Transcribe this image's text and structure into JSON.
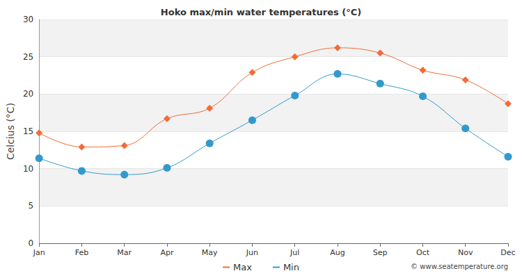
{
  "chart_data": {
    "type": "line",
    "title": "Hoko max/min water temperatures (°C)",
    "y_label": "Celcius (°C)",
    "categories": [
      "Jan",
      "Feb",
      "Mar",
      "Apr",
      "May",
      "Jun",
      "Jul",
      "Aug",
      "Sep",
      "Oct",
      "Nov",
      "Dec"
    ],
    "series": [
      {
        "name": "Max",
        "color": "#f26b38",
        "marker": "diamond",
        "values": [
          14.8,
          12.9,
          13.1,
          16.7,
          18.1,
          22.9,
          25.0,
          26.2,
          25.5,
          23.2,
          21.9,
          18.7
        ]
      },
      {
        "name": "Min",
        "color": "#3399cc",
        "marker": "circle",
        "values": [
          11.4,
          9.7,
          9.2,
          10.1,
          13.4,
          16.5,
          19.8,
          22.7,
          21.4,
          19.7,
          15.4,
          11.6
        ]
      }
    ],
    "ylim": [
      0,
      30
    ],
    "yticks": [
      0,
      5,
      10,
      15,
      20,
      25,
      30
    ],
    "grid": true,
    "legend": "bottom",
    "annotations": [
      "© www.seatemperature.org"
    ]
  }
}
